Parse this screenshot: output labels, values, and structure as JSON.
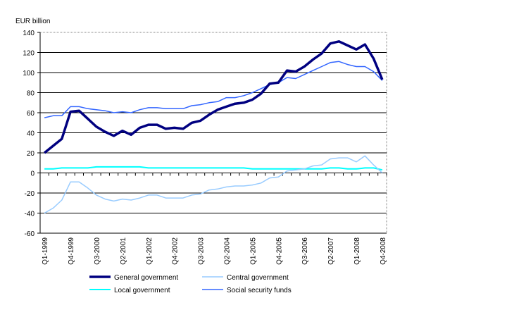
{
  "chart_data": {
    "type": "line",
    "ylabel": "EUR billion",
    "ylim": [
      -60,
      140
    ],
    "yticks": [
      140,
      120,
      100,
      80,
      60,
      40,
      20,
      0,
      -20,
      -40,
      -60
    ],
    "grid": true,
    "legend_position": "bottom",
    "categories": [
      "Q1-1999",
      "Q2-1999",
      "Q3-1999",
      "Q4-1999",
      "Q1-2000",
      "Q2-2000",
      "Q3-2000",
      "Q4-2000",
      "Q1-2001",
      "Q2-2001",
      "Q3-2001",
      "Q4-2001",
      "Q1-2002",
      "Q2-2002",
      "Q3-2002",
      "Q4-2002",
      "Q1-2003",
      "Q2-2003",
      "Q3-2003",
      "Q4-2003",
      "Q1-2004",
      "Q2-2004",
      "Q3-2004",
      "Q4-2004",
      "Q1-2005",
      "Q2-2005",
      "Q3-2005",
      "Q4-2005",
      "Q1-2006",
      "Q2-2006",
      "Q3-2006",
      "Q4-2006",
      "Q1-2007",
      "Q2-2007",
      "Q3-2007",
      "Q4-2007",
      "Q1-2008",
      "Q2-2008",
      "Q3-2008",
      "Q4-2008"
    ],
    "tick_labels": [
      "Q1-1999",
      "Q4-1999",
      "Q3-2000",
      "Q2-2001",
      "Q1-2002",
      "Q4-2002",
      "Q3-2003",
      "Q2-2004",
      "Q1-2005",
      "Q4-2005",
      "Q3-2006",
      "Q2-2007",
      "Q1-2008",
      "Q4-2008"
    ],
    "series": [
      {
        "name": "General government",
        "color": "#000080",
        "values": [
          20,
          27,
          34,
          61,
          62,
          54,
          46,
          41,
          37,
          42,
          38,
          45,
          48,
          48,
          44,
          45,
          44,
          50,
          52,
          58,
          63,
          66,
          69,
          70,
          73,
          79,
          89,
          90,
          102,
          101,
          106,
          113,
          119,
          129,
          131,
          127,
          123,
          128,
          114,
          93
        ]
      },
      {
        "name": "Central government",
        "color": "#99ccff",
        "values": [
          -40,
          -35,
          -27,
          -9,
          -9,
          -15,
          -22,
          -26,
          -28,
          -26,
          -27,
          -25,
          -22,
          -22,
          -25,
          -25,
          -25,
          -22,
          -21,
          -17,
          -16,
          -14,
          -13,
          -13,
          -12,
          -10,
          -5,
          -4,
          2,
          3,
          4,
          7,
          8,
          14,
          15,
          15,
          11,
          17,
          8,
          0
        ]
      },
      {
        "name": "Local government",
        "color": "#00ffff",
        "values": [
          4,
          4,
          5,
          5,
          5,
          5,
          6,
          6,
          6,
          6,
          6,
          6,
          5,
          5,
          5,
          5,
          5,
          5,
          5,
          5,
          5,
          5,
          5,
          5,
          4,
          4,
          4,
          4,
          4,
          4,
          4,
          4,
          4,
          5,
          5,
          4,
          4,
          5,
          5,
          3
        ]
      },
      {
        "name": "Social security funds",
        "color": "#3366ff",
        "values": [
          55,
          57,
          57,
          66,
          66,
          64,
          63,
          62,
          60,
          61,
          60,
          63,
          65,
          65,
          64,
          64,
          64,
          67,
          68,
          70,
          71,
          75,
          75,
          77,
          80,
          84,
          88,
          90,
          95,
          94,
          98,
          102,
          106,
          110,
          111,
          108,
          106,
          106,
          101,
          92
        ]
      }
    ]
  }
}
